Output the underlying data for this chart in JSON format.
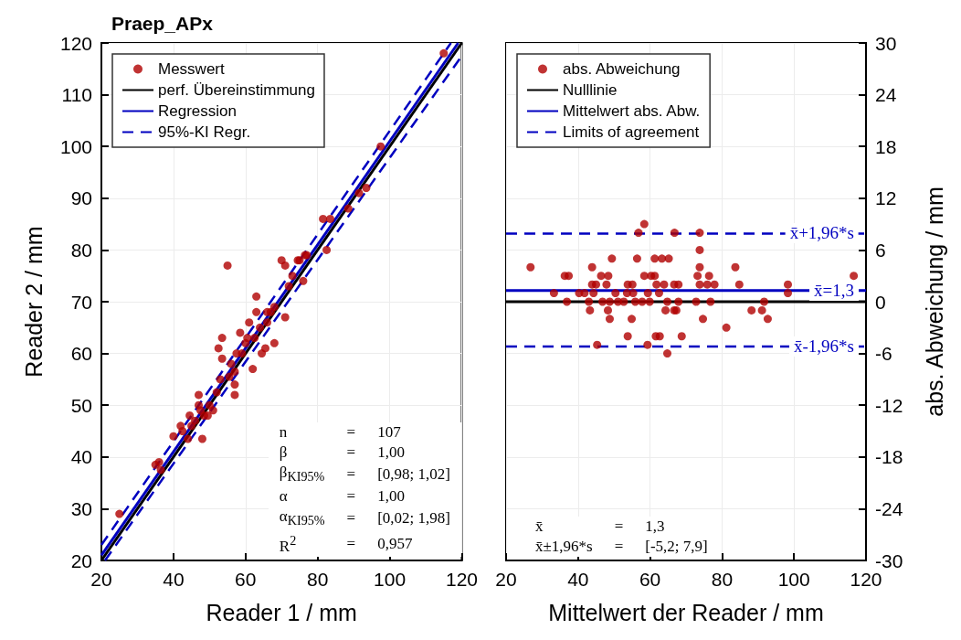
{
  "chart_data": [
    {
      "type": "scatter",
      "title": "Praep_APx",
      "xlabel": "Reader 1 / mm",
      "ylabel": "Reader 2 / mm",
      "xlim": [
        20,
        120
      ],
      "xticks": [
        20,
        40,
        60,
        80,
        100,
        120
      ],
      "ylim": [
        20,
        120
      ],
      "yticks": [
        20,
        30,
        40,
        50,
        60,
        70,
        80,
        90,
        100,
        110,
        120
      ],
      "grid": true,
      "legend": "top left",
      "series": [
        {
          "name": "Messwert",
          "marker": "circle",
          "color": "#b00000",
          "x": [
            25,
            35,
            36,
            36.5,
            40,
            42,
            42.5,
            44,
            44.5,
            45,
            46,
            47,
            47,
            47.5,
            48,
            48.5,
            49.5,
            50,
            51,
            52,
            52.5,
            53,
            53.5,
            53.5,
            55,
            55.5,
            56,
            57,
            57,
            57,
            57.5,
            58.5,
            59,
            60,
            60.5,
            61,
            62,
            62.5,
            63,
            63,
            64,
            64.5,
            65.5,
            66,
            66,
            67,
            68,
            68,
            70,
            71,
            71,
            72,
            73,
            74.5,
            75,
            76,
            76.5,
            77,
            81.5,
            82.5,
            83.5,
            88.5,
            91.5,
            93.5,
            97.5,
            115
          ],
          "values": [
            29,
            38.5,
            39,
            37.5,
            44,
            46,
            45,
            43.5,
            48,
            46,
            47,
            52,
            50,
            49,
            43.5,
            48,
            48,
            50,
            49,
            52.5,
            61,
            55,
            63,
            59,
            77,
            55.5,
            58,
            56.5,
            54,
            52,
            60,
            64,
            60,
            62,
            63,
            66,
            57,
            63,
            68,
            71,
            65,
            60,
            61,
            68,
            66,
            68,
            62,
            69,
            78,
            67,
            77,
            73,
            75,
            78,
            78,
            74,
            79,
            79,
            86,
            80,
            86,
            88,
            91,
            92,
            100,
            118
          ]
        },
        {
          "name": "perf. Übereinstimmung",
          "type": "line",
          "marker": "none",
          "color": "#000000",
          "line_style": "solid",
          "x": [
            20,
            120
          ],
          "values": [
            20,
            120
          ]
        },
        {
          "name": "Regression",
          "type": "line",
          "marker": "none",
          "color": "#0000c0",
          "line_style": "solid",
          "x": [
            20,
            119
          ],
          "values": [
            21,
            120
          ]
        },
        {
          "name": "95%-KI Regr.",
          "type": "line",
          "marker": "none",
          "color": "#0000c0",
          "line_style": "dashed",
          "x": [
            20,
            117
          ],
          "values": [
            23,
            120
          ]
        },
        {
          "type": "line",
          "marker": "none",
          "color": "#0000c0",
          "line_style": "dashed",
          "x": [
            21,
            120
          ],
          "values": [
            20,
            117.5
          ]
        }
      ],
      "annotations": [
        "n = 107",
        "β = 1,00",
        "β$_{KI95%}$ = [0,98; 1,02]",
        "α = 1,00",
        "α$_{KI95%}$ = [0,02; 1,98]",
        "R$^{2}$ = 0,957"
      ]
    },
    {
      "type": "scatter",
      "xlabel": "Mittelwert der Reader / mm",
      "ylabel": "abs. Abweichung / mm",
      "xlim": [
        20,
        120
      ],
      "xticks": [
        20,
        40,
        60,
        80,
        100,
        120
      ],
      "ylim": [
        -30,
        30
      ],
      "yticks": [
        -30,
        -24,
        -18,
        -12,
        -6,
        0,
        6,
        12,
        18,
        24,
        30
      ],
      "grid": true,
      "legend": "top left",
      "series": [
        {
          "name": "abs. Abweichung",
          "marker": "circle",
          "color": "#b00000",
          "x": [
            58.4,
            56.8,
            66.8,
            73.8,
            73.8,
            49.4,
            56.4,
            61.3,
            63.3,
            65.2,
            26.8,
            43.9,
            73.8,
            83.7,
            36.3,
            37.4,
            46.4,
            48.4,
            58.4,
            60.3,
            61.3,
            73.2,
            76.4,
            116.6,
            43.9,
            45,
            47.9,
            53.8,
            55.1,
            61.8,
            63.9,
            66.7,
            67.9,
            73.8,
            75.9,
            77.9,
            84.8,
            98.3,
            33.3,
            40.3,
            41.8,
            44.3,
            50.4,
            53.6,
            55.3,
            59.4,
            62.5,
            98.3,
            36.9,
            43,
            46.8,
            48.8,
            51.1,
            52.7,
            55.9,
            57.8,
            59.9,
            64.8,
            67.9,
            72.8,
            76.8,
            91.7,
            43.3,
            48.3,
            64.3,
            66.7,
            67.3,
            88.2,
            91.1,
            48.8,
            54.9,
            74.7,
            92.7,
            81.2,
            53.8,
            61.6,
            62.7,
            68.8,
            45.3,
            59.3,
            64.8
          ],
          "values": [
            9,
            8,
            8,
            8,
            6,
            5,
            5,
            5,
            5,
            5,
            4,
            4,
            4,
            4,
            3,
            3,
            3,
            3,
            3,
            3,
            3,
            3,
            3,
            3,
            2,
            2,
            2,
            2,
            2,
            2,
            2,
            2,
            2,
            2,
            2,
            2,
            2,
            2,
            1,
            1,
            1,
            1,
            1,
            1,
            1,
            1,
            1,
            1,
            0,
            0,
            0,
            0,
            0,
            0,
            0,
            0,
            0,
            0,
            0,
            0,
            0,
            0,
            -1,
            -1,
            -1,
            -1,
            -1,
            -1,
            -1,
            -2,
            -2,
            -2,
            -2,
            -3,
            -4,
            -4,
            -4,
            -4,
            -5,
            -5,
            -6
          ]
        },
        {
          "name": "Nulllinie",
          "type": "line",
          "marker": "none",
          "color": "#000000",
          "line_style": "solid",
          "x": [
            20,
            120
          ],
          "values": [
            0,
            0
          ]
        },
        {
          "name": "Mittelwert abs. Abw.",
          "type": "line",
          "marker": "none",
          "color": "#0000c0",
          "line_style": "solid",
          "x": [
            20,
            120
          ],
          "values": [
            1.3,
            1.3
          ]
        },
        {
          "name": "Limits of agreement",
          "type": "line",
          "marker": "none",
          "color": "#0000c0",
          "line_style": "dashed",
          "x": [
            20,
            120
          ],
          "values": [
            7.9,
            7.9
          ]
        },
        {
          "type": "line",
          "marker": "none",
          "color": "#0000c0",
          "line_style": "dashed",
          "x": [
            20,
            120
          ],
          "values": [
            -5.2,
            -5.2
          ]
        }
      ],
      "annotations": [
        {
          "text": "x̄+1,96*s",
          "y": 7.9
        },
        {
          "text": "x̄=1,3",
          "y": 1.3
        },
        {
          "text": "x̄-1,96*s",
          "y": -5.2
        },
        "x̄ = 1,3",
        "x̄±1,96*s = [-5,2; 7,9]"
      ]
    }
  ]
}
